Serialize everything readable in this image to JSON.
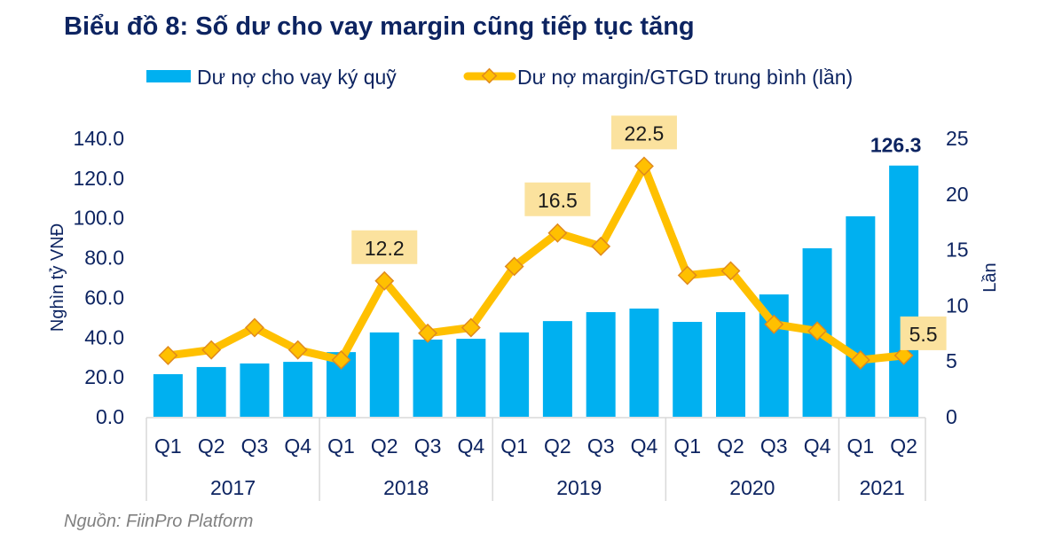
{
  "title": "Biểu đồ 8: Số dư cho vay margin cũng tiếp tục tăng",
  "source": "Nguồn: FiinPro Platform",
  "colors": {
    "bar": "#00b0f0",
    "line": "#ffc000",
    "marker_fill": "#ffc000",
    "marker_stroke": "#e08a1e",
    "label_box": "#fbe29e",
    "text": "#0d2461",
    "axis_line": "#d9d9d9"
  },
  "chart_data": {
    "type": "bar",
    "title": "Biểu đồ 8: Số dư cho vay margin cũng tiếp tục tăng",
    "legend_position": "top",
    "categories": [
      "Q1",
      "Q2",
      "Q3",
      "Q4",
      "Q1",
      "Q2",
      "Q3",
      "Q4",
      "Q1",
      "Q2",
      "Q3",
      "Q4",
      "Q1",
      "Q2",
      "Q3",
      "Q4",
      "Q1",
      "Q2"
    ],
    "groups": [
      {
        "label": "2017",
        "count": 4
      },
      {
        "label": "2018",
        "count": 4
      },
      {
        "label": "2019",
        "count": 4
      },
      {
        "label": "2020",
        "count": 4
      },
      {
        "label": "2021",
        "count": 2
      }
    ],
    "series": [
      {
        "name": "Dư nợ cho vay ký quỹ",
        "type": "bar",
        "axis": "left",
        "values": [
          21.4,
          25.0,
          26.8,
          27.6,
          32.5,
          42.4,
          38.8,
          39.2,
          42.4,
          48.1,
          52.6,
          54.4,
          47.7,
          52.6,
          61.5,
          84.7,
          100.8,
          126.3
        ],
        "data_labels": [
          {
            "index": 17,
            "text": "126.3"
          }
        ]
      },
      {
        "name": "Dư nợ margin/GTGD trung bình (lần)",
        "type": "line",
        "axis": "right",
        "values": [
          5.5,
          6.0,
          8.0,
          6.0,
          5.1,
          12.2,
          7.5,
          8.0,
          13.5,
          16.5,
          15.3,
          22.5,
          12.7,
          13.1,
          8.3,
          7.7,
          5.1,
          5.5
        ],
        "data_labels": [
          {
            "index": 5,
            "text": "12.2"
          },
          {
            "index": 9,
            "text": "16.5"
          },
          {
            "index": 11,
            "text": "22.5"
          },
          {
            "index": 17,
            "text": "5.5"
          }
        ]
      }
    ],
    "y_left": {
      "label": "Nghìn tỷ VNĐ",
      "range": [
        0,
        140
      ],
      "ticks": [
        "0.0",
        "20.0",
        "40.0",
        "60.0",
        "80.0",
        "100.0",
        "120.0",
        "140.0"
      ]
    },
    "y_right": {
      "label": "Lần",
      "range": [
        0,
        25
      ],
      "ticks": [
        "0",
        "5",
        "10",
        "15",
        "20",
        "25"
      ]
    },
    "grid": false
  }
}
